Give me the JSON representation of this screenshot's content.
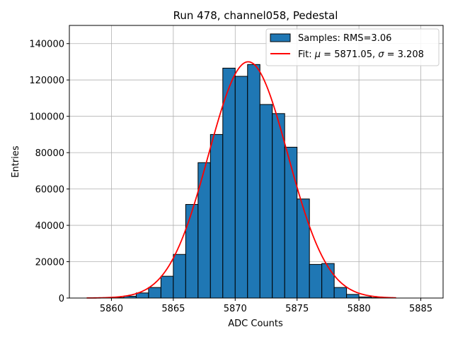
{
  "chart_data": {
    "type": "bar",
    "title": "Run 478, channel058, Pedestal",
    "xlabel": "ADC Counts",
    "ylabel": "Entries",
    "xlim": [
      5856.6,
      5886.8
    ],
    "ylim": [
      0,
      150000
    ],
    "xticks": [
      5860,
      5865,
      5870,
      5875,
      5880,
      5885
    ],
    "yticks": [
      0,
      20000,
      40000,
      60000,
      80000,
      100000,
      120000,
      140000
    ],
    "grid": true,
    "legend_position": "top-right",
    "bin_width": 1,
    "bins": [
      {
        "left": 5860,
        "count": 200
      },
      {
        "left": 5861,
        "count": 1000
      },
      {
        "left": 5862,
        "count": 2800
      },
      {
        "left": 5863,
        "count": 5800
      },
      {
        "left": 5864,
        "count": 12000
      },
      {
        "left": 5865,
        "count": 24000
      },
      {
        "left": 5866,
        "count": 51500
      },
      {
        "left": 5867,
        "count": 74500
      },
      {
        "left": 5868,
        "count": 90000
      },
      {
        "left": 5869,
        "count": 126500
      },
      {
        "left": 5870,
        "count": 122000
      },
      {
        "left": 5871,
        "count": 128500
      },
      {
        "left": 5872,
        "count": 106500
      },
      {
        "left": 5873,
        "count": 101500
      },
      {
        "left": 5874,
        "count": 83000
      },
      {
        "left": 5875,
        "count": 54500
      },
      {
        "left": 5876,
        "count": 18500
      },
      {
        "left": 5877,
        "count": 19000
      },
      {
        "left": 5878,
        "count": 5800
      },
      {
        "left": 5879,
        "count": 2000
      },
      {
        "left": 5880,
        "count": 600
      },
      {
        "left": 5881,
        "count": 200
      }
    ],
    "fit": {
      "mu": 5871.05,
      "sigma": 3.208,
      "amplitude": 130000,
      "x_range": [
        5858,
        5883
      ]
    },
    "legend": [
      {
        "label": "Samples: RMS=3.06",
        "kind": "patch",
        "color": "#1f77b4"
      },
      {
        "label_prefix": "Fit: ",
        "label_mu": "μ",
        "label_mid": " = 5871.05, ",
        "label_sigma": "σ",
        "label_end": " = 3.208",
        "kind": "line",
        "color": "#ff0000"
      }
    ],
    "colors": {
      "bar": "#1f77b4",
      "bar_edge": "#000000",
      "fit": "#ff0000"
    }
  }
}
